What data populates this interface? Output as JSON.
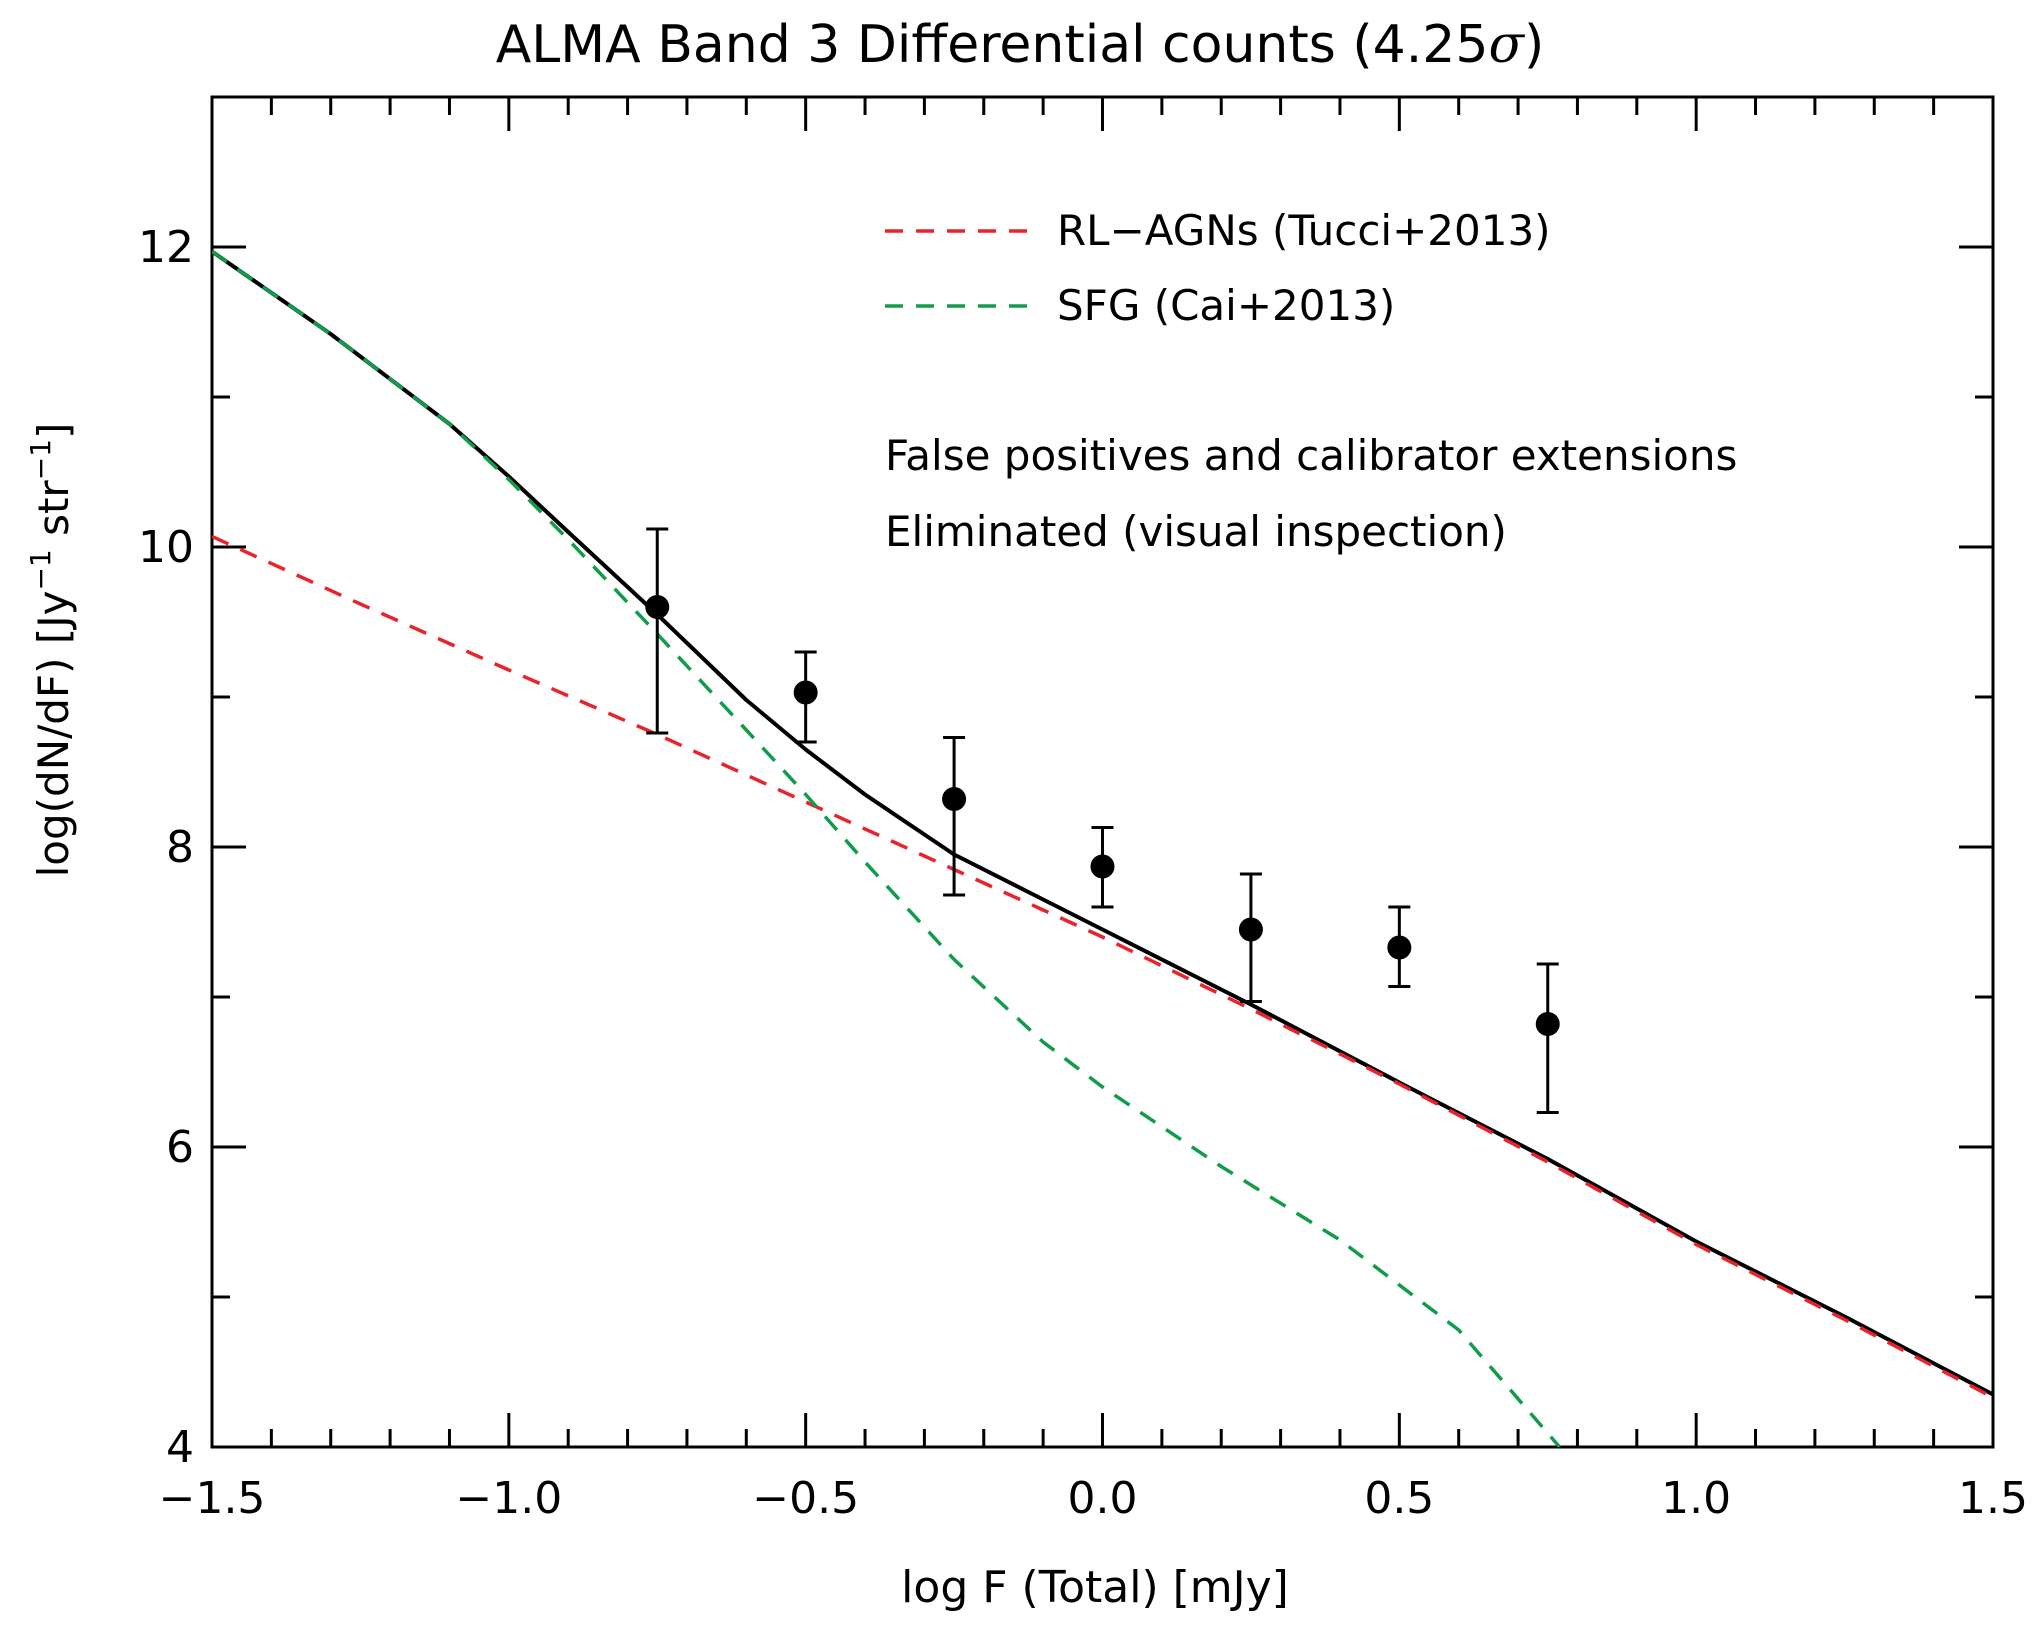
{
  "chart_data": {
    "type": "line",
    "title": "ALMA Band 3 Differential counts (4.25",
    "title_sigma": "σ",
    "title_close": ")",
    "xlabel": "log F (Total) [mJy]",
    "ylabel_main": "log(dN/dF) [Jy",
    "ylabel_exp1": "−1",
    "ylabel_mid": " str",
    "ylabel_exp2": "−1",
    "ylabel_close": "]",
    "xlim": [
      -1.5,
      1.5
    ],
    "ylim": [
      4,
      13
    ],
    "xticks": [
      -1.5,
      -1.0,
      -0.5,
      0.0,
      0.5,
      1.0,
      1.5
    ],
    "xtick_labels": [
      "−1.5",
      "−1.0",
      "−0.5",
      "0.0",
      "0.5",
      "1.0",
      "1.5"
    ],
    "x_minor_step": 0.1,
    "yticks": [
      4,
      6,
      8,
      10,
      12
    ],
    "ytick_labels": [
      "4",
      "6",
      "8",
      "10",
      "12"
    ],
    "y_minor_step": 1,
    "legend": [
      {
        "label": "RL−AGNs (Tucci+2013)",
        "color": "#e8232b",
        "style": "dashed"
      },
      {
        "label": "SFG (Cai+2013)",
        "color": "#119c4a",
        "style": "dashed"
      }
    ],
    "annotation": [
      "False positives and calibrator extensions",
      "Eliminated (visual inspection)"
    ],
    "series": [
      {
        "name": "RL-AGNs (Tucci+2013)",
        "color": "#e8232b",
        "style": "dashed",
        "x": [
          -1.5,
          -1.25,
          -1.0,
          -0.75,
          -0.5,
          -0.25,
          0.0,
          0.25,
          0.5,
          0.75,
          1.0,
          1.25,
          1.5
        ],
        "y": [
          10.07,
          9.62,
          9.18,
          8.75,
          8.3,
          7.85,
          7.4,
          6.92,
          6.42,
          5.9,
          5.35,
          4.85,
          4.33
        ]
      },
      {
        "name": "SFG (Cai+2013)",
        "color": "#119c4a",
        "style": "dashed",
        "x": [
          -1.5,
          -1.3,
          -1.1,
          -1.0,
          -0.9,
          -0.75,
          -0.6,
          -0.5,
          -0.4,
          -0.25,
          -0.1,
          0.0,
          0.2,
          0.4,
          0.6,
          0.77
        ],
        "y": [
          11.97,
          11.42,
          10.82,
          10.45,
          10.05,
          9.42,
          8.78,
          8.35,
          7.9,
          7.25,
          6.7,
          6.4,
          5.87,
          5.38,
          4.78,
          4.0
        ]
      },
      {
        "name": "Total model",
        "color": "#000000",
        "style": "solid",
        "x": [
          -1.5,
          -1.3,
          -1.1,
          -1.0,
          -0.9,
          -0.75,
          -0.6,
          -0.5,
          -0.4,
          -0.25,
          -0.1,
          0.0,
          0.25,
          0.5,
          0.75,
          1.0,
          1.25,
          1.5
        ],
        "y": [
          11.97,
          11.42,
          10.82,
          10.47,
          10.1,
          9.55,
          8.98,
          8.65,
          8.35,
          7.95,
          7.65,
          7.45,
          6.95,
          6.43,
          5.92,
          5.37,
          4.87,
          4.35
        ]
      }
    ],
    "points": {
      "name": "Data",
      "x": [
        -0.75,
        -0.5,
        -0.25,
        0.0,
        0.25,
        0.5,
        0.75
      ],
      "y": [
        9.6,
        9.03,
        8.32,
        7.87,
        7.45,
        7.33,
        6.82
      ],
      "yerr_low": [
        8.76,
        8.7,
        7.68,
        7.6,
        6.97,
        7.07,
        6.23
      ],
      "yerr_high": [
        10.12,
        9.3,
        8.73,
        8.13,
        7.82,
        7.6,
        7.22
      ]
    }
  }
}
